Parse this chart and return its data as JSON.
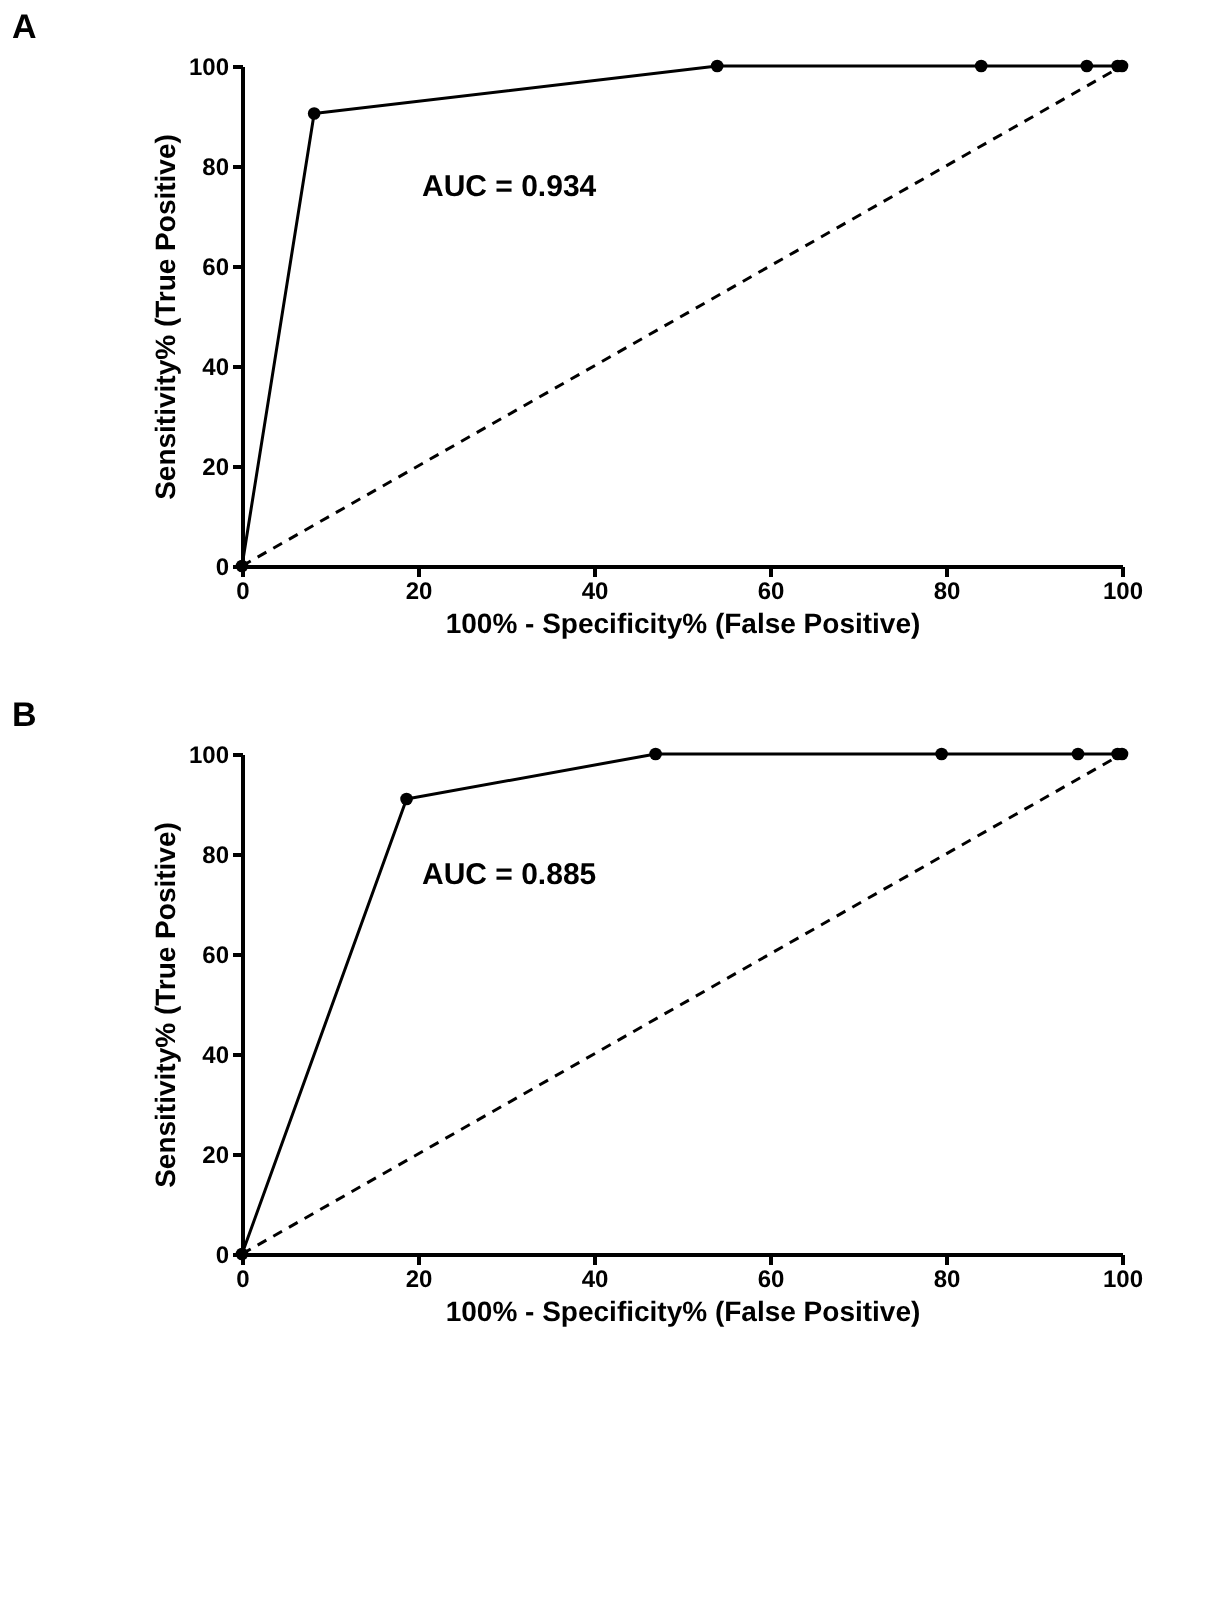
{
  "chart_data": [
    {
      "type": "line",
      "title": "A",
      "xlabel": "100% - Specificity% (False Positive)",
      "ylabel": "Sensitivity% (True Positive)",
      "annotations": [
        "AUC = 0.934"
      ],
      "xlim": [
        0,
        100
      ],
      "ylim": [
        0,
        100
      ],
      "xticks": [
        0,
        20,
        40,
        60,
        80,
        100
      ],
      "yticks": [
        0,
        20,
        40,
        60,
        80,
        100
      ],
      "grid": false,
      "series": [
        {
          "type": "line",
          "color": "#000000",
          "marker": "circle",
          "line_style": "solid",
          "x": [
            0,
            8.2,
            54,
            84,
            96,
            99.5,
            100
          ],
          "values": [
            0,
            90.5,
            100,
            100,
            100,
            100,
            100
          ]
        },
        {
          "type": "line",
          "color": "#000000",
          "marker": "none",
          "line_style": "dashed",
          "x": [
            0,
            100
          ],
          "values": [
            0,
            100
          ]
        }
      ]
    },
    {
      "type": "line",
      "title": "B",
      "xlabel": "100% - Specificity% (False Positive)",
      "ylabel": "Sensitivity% (True Positive)",
      "annotations": [
        "AUC = 0.885"
      ],
      "xlim": [
        0,
        100
      ],
      "ylim": [
        0,
        100
      ],
      "xticks": [
        0,
        20,
        40,
        60,
        80,
        100
      ],
      "yticks": [
        0,
        20,
        40,
        60,
        80,
        100
      ],
      "grid": false,
      "series": [
        {
          "type": "line",
          "color": "#000000",
          "marker": "circle",
          "line_style": "solid",
          "x": [
            0,
            18.7,
            47,
            79.5,
            95,
            99.5,
            100
          ],
          "values": [
            0,
            91,
            100,
            100,
            100,
            100,
            100
          ]
        },
        {
          "type": "line",
          "color": "#000000",
          "marker": "none",
          "line_style": "dashed",
          "x": [
            0,
            100
          ],
          "values": [
            0,
            100
          ]
        }
      ]
    }
  ]
}
